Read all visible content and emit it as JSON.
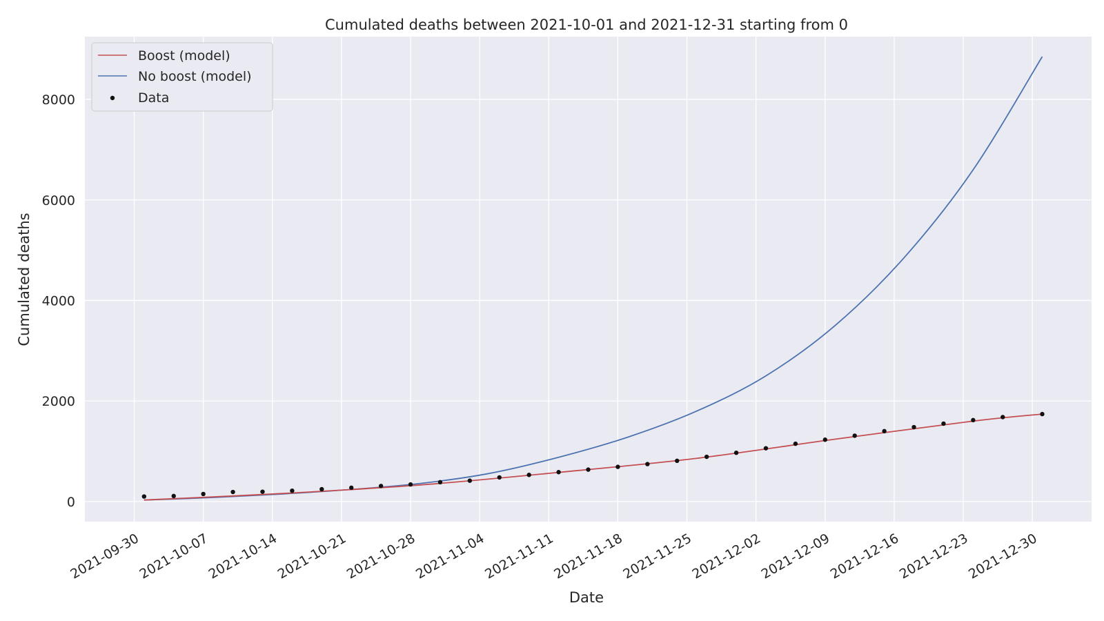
{
  "chart_data": {
    "type": "line",
    "title": "Cumulated deaths between 2021-10-01 and 2021-12-31 starting from 0",
    "xlabel": "Date",
    "ylabel": "Cumulated deaths",
    "x_start": "2021-10-01",
    "x_end": "2021-12-31",
    "xlim": [
      "2021-09-25",
      "2022-01-05"
    ],
    "ylim": [
      -400,
      9250
    ],
    "x_ticks": [
      "2021-09-30",
      "2021-10-07",
      "2021-10-14",
      "2021-10-21",
      "2021-10-28",
      "2021-11-04",
      "2021-11-11",
      "2021-11-18",
      "2021-11-25",
      "2021-12-02",
      "2021-12-09",
      "2021-12-16",
      "2021-12-23",
      "2021-12-30"
    ],
    "y_ticks": [
      0,
      2000,
      4000,
      6000,
      8000
    ],
    "grid": true,
    "legend_position": "top-left",
    "colors": {
      "background": "#eaeaf2",
      "grid": "#ffffff",
      "boost": "#c44e52",
      "no_boost": "#4c72b0",
      "data": "#111111"
    },
    "series": [
      {
        "name": "Boost (model)",
        "kind": "line",
        "x": [
          "2021-10-01",
          "2021-10-15",
          "2021-10-29",
          "2021-11-12",
          "2021-11-26",
          "2021-12-10",
          "2021-12-24",
          "2021-12-31"
        ],
        "values": [
          30,
          160,
          330,
          580,
          860,
          1240,
          1600,
          1740
        ]
      },
      {
        "name": "No boost (model)",
        "kind": "line",
        "x": [
          "2021-10-01",
          "2021-10-08",
          "2021-10-15",
          "2021-10-22",
          "2021-10-29",
          "2021-11-05",
          "2021-11-12",
          "2021-11-19",
          "2021-11-26",
          "2021-12-03",
          "2021-12-10",
          "2021-12-17",
          "2021-12-24",
          "2021-12-31"
        ],
        "values": [
          30,
          80,
          150,
          240,
          360,
          560,
          880,
          1280,
          1800,
          2500,
          3500,
          4850,
          6600,
          8850
        ]
      },
      {
        "name": "Data",
        "kind": "scatter",
        "x": [
          "2021-10-01",
          "2021-10-04",
          "2021-10-07",
          "2021-10-10",
          "2021-10-13",
          "2021-10-16",
          "2021-10-19",
          "2021-10-22",
          "2021-10-25",
          "2021-10-28",
          "2021-10-31",
          "2021-11-03",
          "2021-11-06",
          "2021-11-09",
          "2021-11-12",
          "2021-11-15",
          "2021-11-18",
          "2021-11-21",
          "2021-11-24",
          "2021-11-27",
          "2021-11-30",
          "2021-12-03",
          "2021-12-06",
          "2021-12-09",
          "2021-12-12",
          "2021-12-15",
          "2021-12-18",
          "2021-12-21",
          "2021-12-24",
          "2021-12-27",
          "2021-12-31"
        ],
        "values": [
          100,
          110,
          150,
          190,
          195,
          215,
          245,
          275,
          310,
          340,
          385,
          415,
          480,
          530,
          585,
          635,
          690,
          745,
          810,
          890,
          970,
          1060,
          1150,
          1230,
          1310,
          1400,
          1480,
          1550,
          1620,
          1680,
          1740
        ]
      }
    ]
  }
}
